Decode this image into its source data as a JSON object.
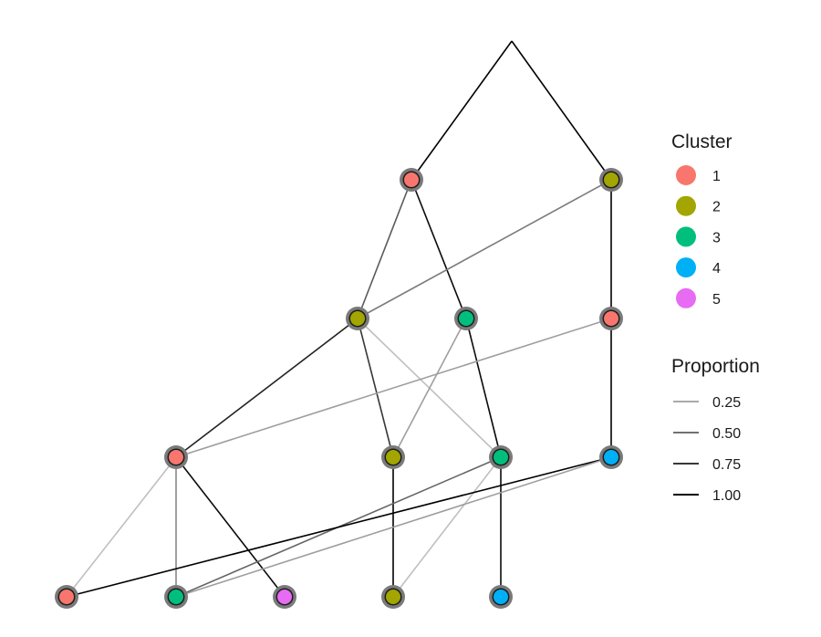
{
  "diagram": {
    "type": "cluster-tree",
    "layers": [
      "root",
      "k=2",
      "k=3",
      "k=4",
      "k=5"
    ],
    "nodes": [
      {
        "id": "root",
        "layer": 0,
        "cluster": null
      },
      {
        "id": "k2_c1",
        "layer": 1,
        "cluster": 1
      },
      {
        "id": "k2_c2",
        "layer": 1,
        "cluster": 2
      },
      {
        "id": "k3_c2",
        "layer": 2,
        "cluster": 2
      },
      {
        "id": "k3_c3",
        "layer": 2,
        "cluster": 3
      },
      {
        "id": "k3_c1",
        "layer": 2,
        "cluster": 1
      },
      {
        "id": "k4_c1",
        "layer": 3,
        "cluster": 1
      },
      {
        "id": "k4_c2",
        "layer": 3,
        "cluster": 2
      },
      {
        "id": "k4_c3",
        "layer": 3,
        "cluster": 3
      },
      {
        "id": "k4_c4",
        "layer": 3,
        "cluster": 4
      },
      {
        "id": "k5_c1",
        "layer": 4,
        "cluster": 1
      },
      {
        "id": "k5_c3",
        "layer": 4,
        "cluster": 3
      },
      {
        "id": "k5_c5",
        "layer": 4,
        "cluster": 5
      },
      {
        "id": "k5_c2",
        "layer": 4,
        "cluster": 2
      },
      {
        "id": "k5_c4",
        "layer": 4,
        "cluster": 4
      }
    ],
    "edges": [
      {
        "from": "root",
        "to": "k2_c1",
        "proportion": 1.0
      },
      {
        "from": "root",
        "to": "k2_c2",
        "proportion": 1.0
      },
      {
        "from": "k2_c1",
        "to": "k3_c2",
        "proportion": 0.6
      },
      {
        "from": "k2_c1",
        "to": "k3_c3",
        "proportion": 0.95
      },
      {
        "from": "k2_c2",
        "to": "k3_c2",
        "proportion": 0.45
      },
      {
        "from": "k2_c2",
        "to": "k3_c1",
        "proportion": 1.0
      },
      {
        "from": "k3_c2",
        "to": "k4_c1",
        "proportion": 0.85
      },
      {
        "from": "k3_c2",
        "to": "k4_c2",
        "proportion": 0.75
      },
      {
        "from": "k3_c2",
        "to": "k4_c3",
        "proportion": 0.15
      },
      {
        "from": "k3_c3",
        "to": "k4_c2",
        "proportion": 0.3
      },
      {
        "from": "k3_c3",
        "to": "k4_c3",
        "proportion": 0.95
      },
      {
        "from": "k3_c1",
        "to": "k4_c1",
        "proportion": 0.3
      },
      {
        "from": "k3_c1",
        "to": "k4_c4",
        "proportion": 1.0
      },
      {
        "from": "k4_c1",
        "to": "k5_c1",
        "proportion": 0.15
      },
      {
        "from": "k4_c1",
        "to": "k5_c3",
        "proportion": 0.4
      },
      {
        "from": "k4_c1",
        "to": "k5_c5",
        "proportion": 0.95
      },
      {
        "from": "k4_c2",
        "to": "k5_c2",
        "proportion": 1.0
      },
      {
        "from": "k4_c3",
        "to": "k5_c3",
        "proportion": 0.55
      },
      {
        "from": "k4_c3",
        "to": "k5_c2",
        "proportion": 0.15
      },
      {
        "from": "k4_c3",
        "to": "k5_c4",
        "proportion": 0.95
      },
      {
        "from": "k4_c4",
        "to": "k5_c1",
        "proportion": 1.0
      },
      {
        "from": "k4_c4",
        "to": "k5_c3",
        "proportion": 0.3
      }
    ]
  },
  "legend": {
    "cluster_title": "Cluster",
    "clusters": [
      {
        "label": "1",
        "color": "#F8766D"
      },
      {
        "label": "2",
        "color": "#A3A500"
      },
      {
        "label": "3",
        "color": "#00BF7D"
      },
      {
        "label": "4",
        "color": "#00B0F6"
      },
      {
        "label": "5",
        "color": "#E76BF3"
      }
    ],
    "proportion_title": "Proportion",
    "proportions": [
      {
        "label": "0.25",
        "value": 0.25
      },
      {
        "label": "0.50",
        "value": 0.5
      },
      {
        "label": "0.75",
        "value": 0.75
      },
      {
        "label": "1.00",
        "value": 1.0
      }
    ]
  }
}
